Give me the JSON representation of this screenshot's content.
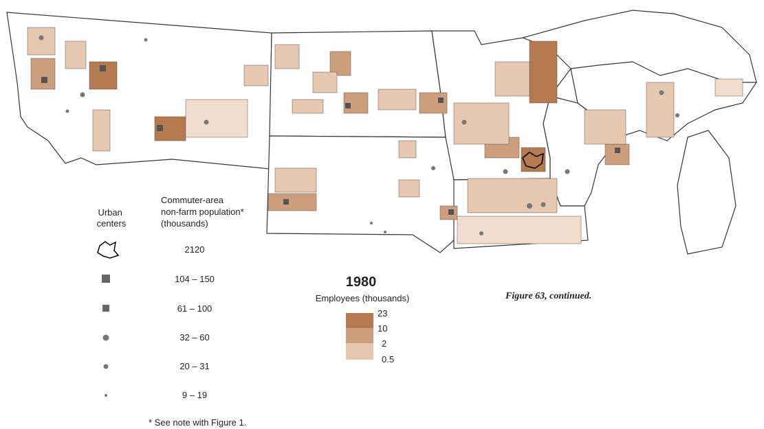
{
  "legend_urban": {
    "left_title": [
      "Urban",
      "centers"
    ],
    "right_title": [
      "Commuter-area",
      "non-farm population*",
      "(thousands)"
    ],
    "items": [
      "2120",
      "104 – 150",
      "61 – 100",
      "32 – 60",
      "20 – 31",
      "9 – 19"
    ]
  },
  "footnote": "* See note with Figure 1.",
  "employee_legend": {
    "year": "1980",
    "title": "Employees (thousands)",
    "breaks": [
      "23",
      "10",
      "2",
      "0.5"
    ]
  },
  "caption": "Figure 63, continued."
}
